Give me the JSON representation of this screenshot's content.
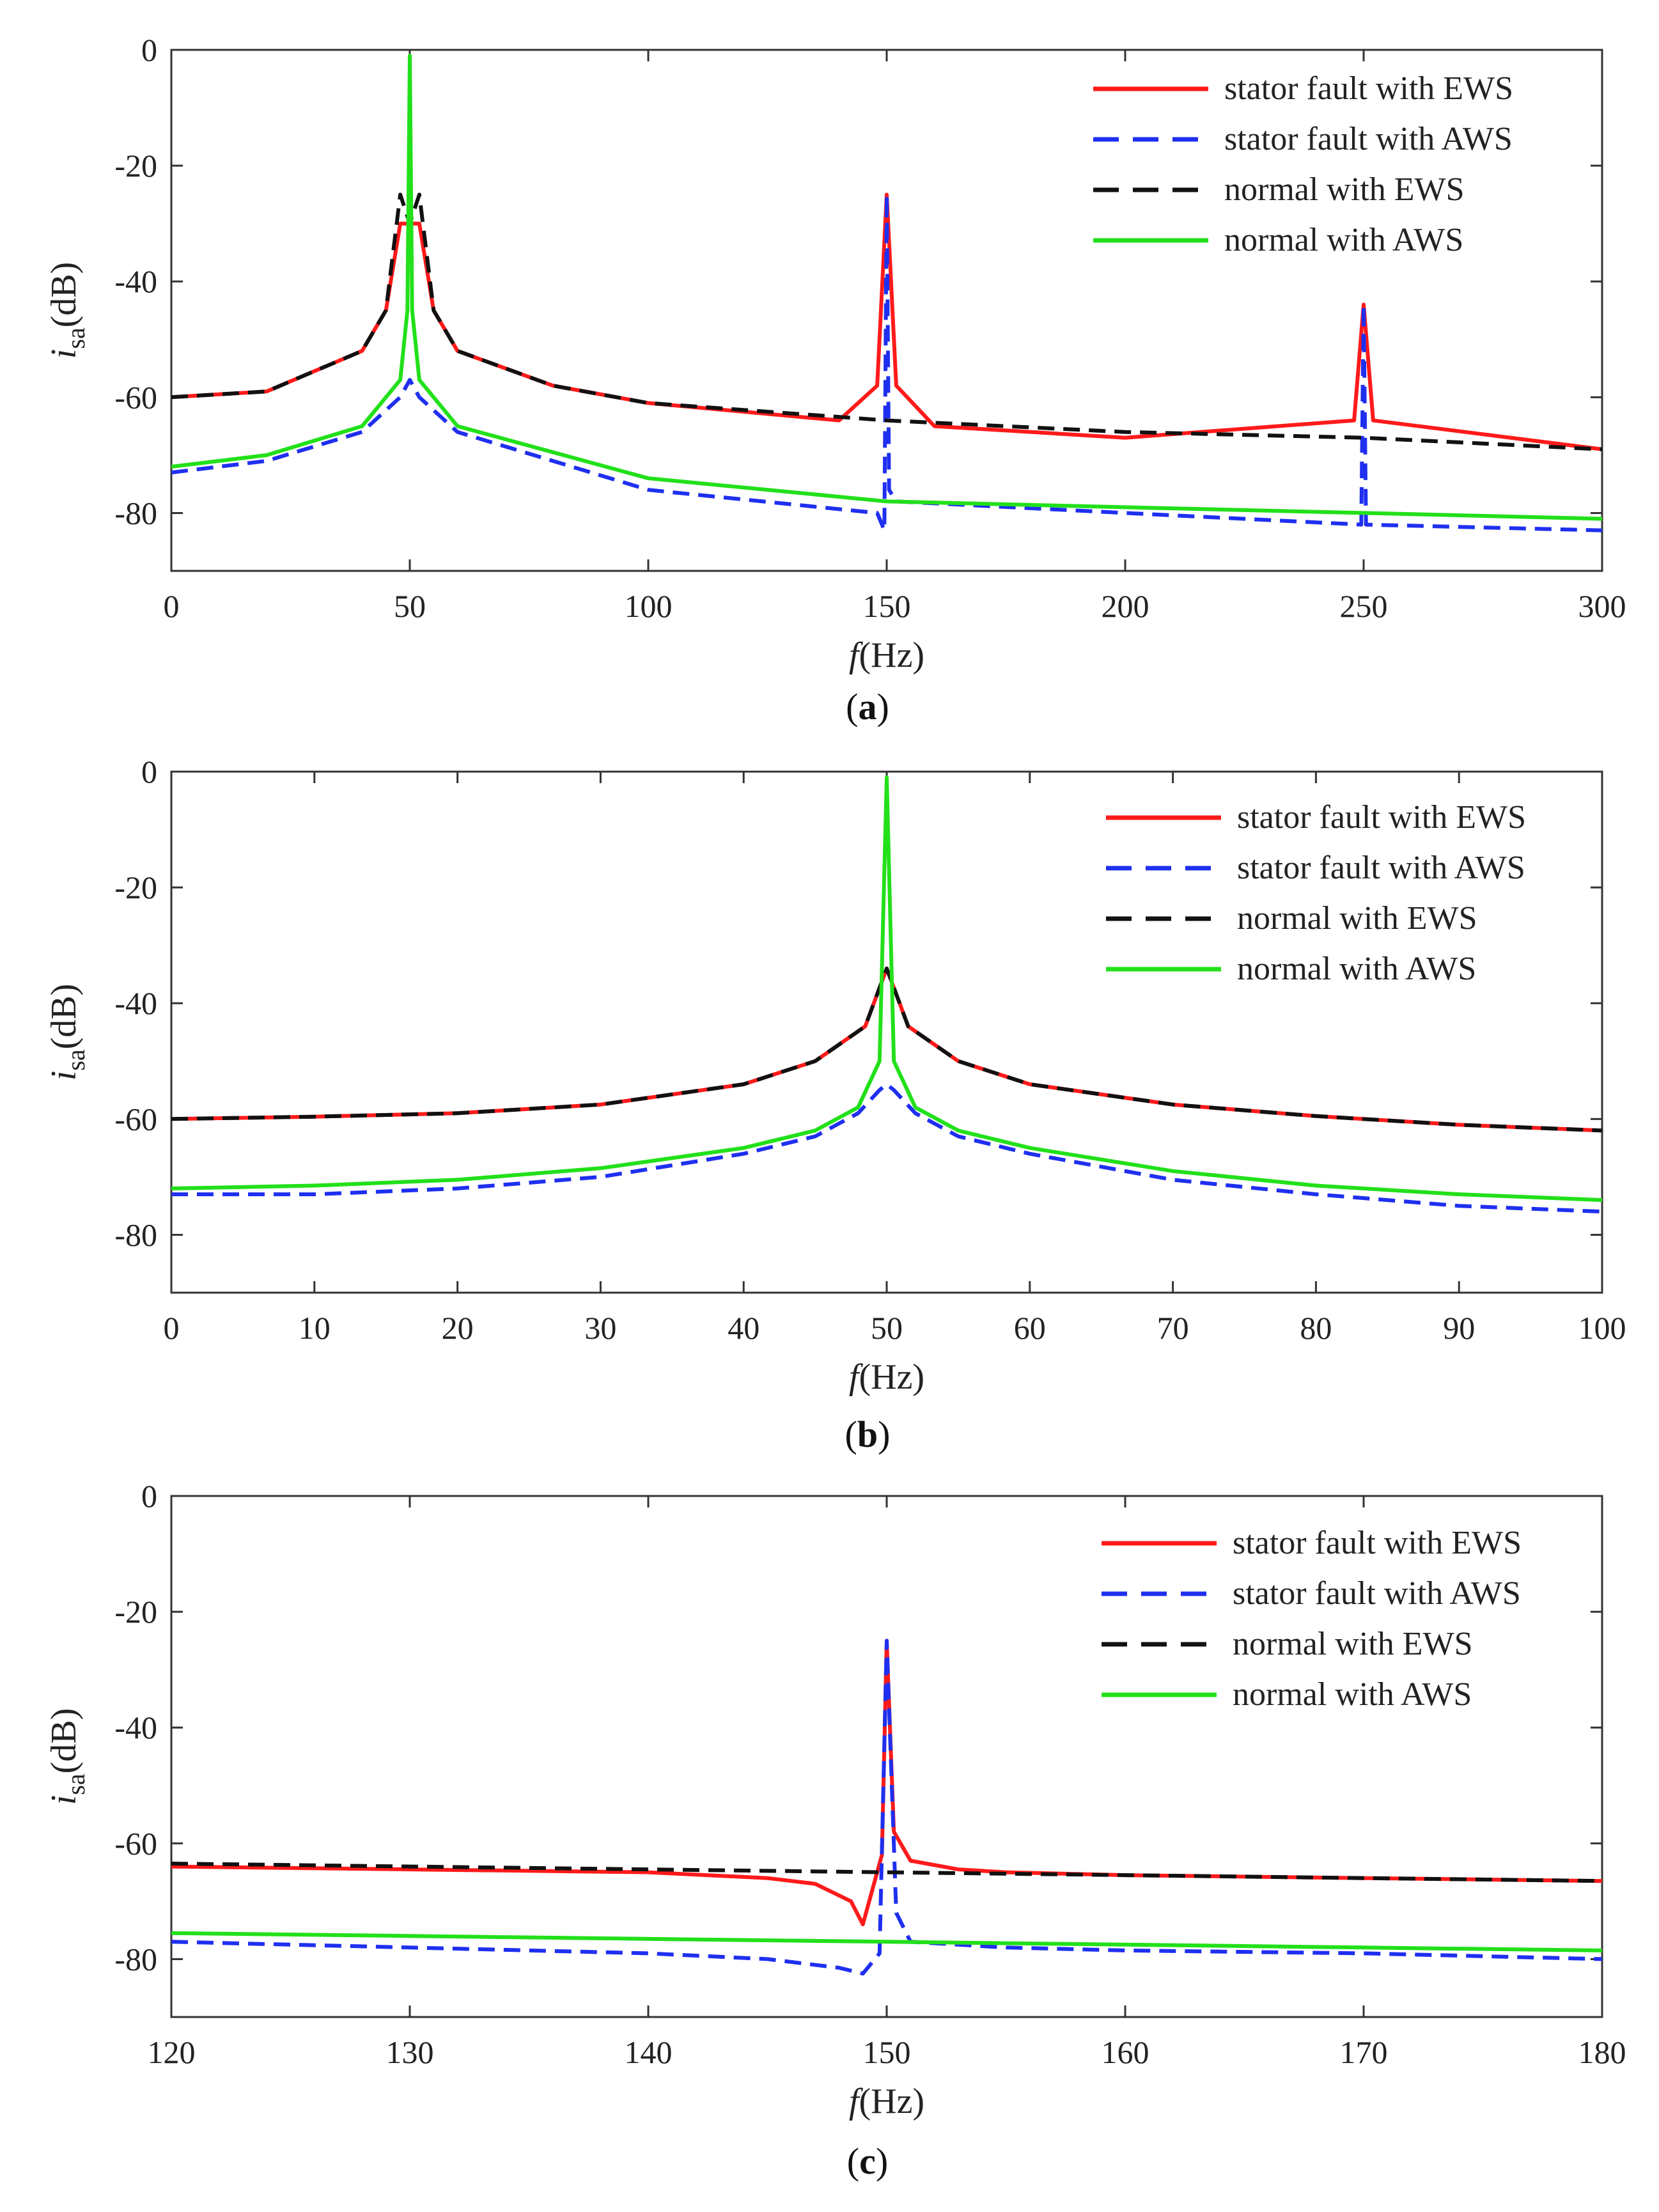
{
  "colors": {
    "stator_fault_ews": "#ff1a1a",
    "stator_fault_aws": "#1f2ff0",
    "normal_ews": "#111111",
    "normal_aws": "#22e01a"
  },
  "legend": [
    {
      "label": "stator fault with EWS",
      "style": "solid",
      "color": "#ff1a1a"
    },
    {
      "label": "stator fault with AWS",
      "style": "dashed",
      "color": "#1f2ff0"
    },
    {
      "label": "normal with EWS",
      "style": "dashed",
      "color": "#111111"
    },
    {
      "label": "normal with AWS",
      "style": "solid",
      "color": "#22e01a"
    }
  ],
  "chart_data": [
    {
      "type": "line",
      "caption_letter": "a",
      "xlabel_italic": "f",
      "xlabel_rest": "(Hz)",
      "ylabel_i": "i",
      "ylabel_sub": "sa",
      "ylabel_rest": "(dB)",
      "xlim": [
        0,
        300
      ],
      "ylim": [
        -90,
        0
      ],
      "xticks": [
        "0",
        "50",
        "100",
        "150",
        "200",
        "250",
        "300"
      ],
      "xtick_values": [
        0,
        50,
        100,
        150,
        200,
        250,
        300
      ],
      "yticks": [
        "0",
        "-20",
        "-40",
        "-60",
        "-80"
      ],
      "ytick_values": [
        0,
        -20,
        -40,
        -60,
        -80
      ],
      "series": [
        {
          "name": "stator fault with EWS",
          "x": [
            0,
            20,
            40,
            45,
            48,
            50,
            52,
            55,
            60,
            80,
            100,
            140,
            148,
            150,
            152,
            160,
            200,
            248,
            250,
            252,
            300
          ],
          "y": [
            -60,
            -59,
            -52,
            -45,
            -30,
            -30,
            -30,
            -45,
            -52,
            -58,
            -61,
            -64,
            -58,
            -25,
            -58,
            -65,
            -67,
            -64,
            -44,
            -64,
            -69
          ]
        },
        {
          "name": "stator fault with AWS",
          "x": [
            0,
            20,
            40,
            48,
            50,
            52,
            60,
            100,
            148,
            149.5,
            150,
            150.5,
            152,
            200,
            249.5,
            250,
            250.5,
            300
          ],
          "y": [
            -73,
            -71,
            -66,
            -60,
            -57,
            -60,
            -66,
            -76,
            -80,
            -83,
            -25,
            -76,
            -78,
            -80,
            -82,
            -44,
            -82,
            -83
          ]
        },
        {
          "name": "normal with EWS",
          "x": [
            0,
            20,
            40,
            45,
            48,
            50,
            52,
            55,
            60,
            80,
            100,
            150,
            200,
            250,
            300
          ],
          "y": [
            -60,
            -59,
            -52,
            -45,
            -25,
            -30,
            -25,
            -45,
            -52,
            -58,
            -61,
            -64,
            -66,
            -67,
            -69
          ]
        },
        {
          "name": "normal with AWS",
          "x": [
            0,
            20,
            40,
            48,
            49.5,
            50,
            50.5,
            52,
            60,
            100,
            150,
            200,
            250,
            300
          ],
          "y": [
            -72,
            -70,
            -65,
            -57,
            -45,
            -1,
            -45,
            -57,
            -65,
            -74,
            -78,
            -79,
            -80,
            -81
          ]
        }
      ]
    },
    {
      "type": "line",
      "caption_letter": "b",
      "xlabel_italic": "f",
      "xlabel_rest": "(Hz)",
      "ylabel_i": "i",
      "ylabel_sub": "sa",
      "ylabel_rest": "(dB)",
      "xlim": [
        0,
        100
      ],
      "ylim": [
        -90,
        0
      ],
      "xticks": [
        "0",
        "10",
        "20",
        "30",
        "40",
        "50",
        "60",
        "70",
        "80",
        "90",
        "100"
      ],
      "xtick_values": [
        0,
        10,
        20,
        30,
        40,
        50,
        60,
        70,
        80,
        90,
        100
      ],
      "yticks": [
        "0",
        "-20",
        "-40",
        "-60",
        "-80"
      ],
      "ytick_values": [
        0,
        -20,
        -40,
        -60,
        -80
      ],
      "series": [
        {
          "name": "stator fault with EWS",
          "x": [
            0,
            10,
            20,
            30,
            40,
            45,
            48.5,
            50,
            51.5,
            55,
            60,
            70,
            80,
            90,
            100
          ],
          "y": [
            -60,
            -59.6,
            -59,
            -57.5,
            -54,
            -50,
            -44,
            -34,
            -44,
            -50,
            -54,
            -57.5,
            -59.5,
            -61,
            -62
          ]
        },
        {
          "name": "stator fault with AWS",
          "x": [
            0,
            10,
            20,
            30,
            40,
            45,
            48,
            49.5,
            50,
            50.5,
            52,
            55,
            60,
            70,
            80,
            90,
            100
          ],
          "y": [
            -73,
            -73,
            -72,
            -70,
            -66,
            -63,
            -59,
            -55,
            -54,
            -55,
            -59,
            -63,
            -66,
            -70.5,
            -73,
            -75,
            -76
          ]
        },
        {
          "name": "normal with EWS",
          "x": [
            0,
            10,
            20,
            30,
            40,
            45,
            48.5,
            50,
            51.5,
            55,
            60,
            70,
            80,
            90,
            100
          ],
          "y": [
            -60,
            -59.6,
            -59,
            -57.5,
            -54,
            -50,
            -44,
            -34,
            -44,
            -50,
            -54,
            -57.5,
            -59.5,
            -61,
            -62
          ]
        },
        {
          "name": "normal with AWS",
          "x": [
            0,
            10,
            20,
            30,
            40,
            45,
            48,
            49.5,
            50,
            50.5,
            52,
            55,
            60,
            70,
            80,
            90,
            100
          ],
          "y": [
            -72,
            -71.5,
            -70.5,
            -68.5,
            -65,
            -62,
            -58,
            -50,
            -1,
            -50,
            -58,
            -62,
            -65,
            -69,
            -71.5,
            -73,
            -74
          ]
        }
      ]
    },
    {
      "type": "line",
      "caption_letter": "c",
      "xlabel_italic": "f",
      "xlabel_rest": "(Hz)",
      "ylabel_i": "i",
      "ylabel_sub": "sa",
      "ylabel_rest": "(dB)",
      "xlim": [
        120,
        180
      ],
      "ylim": [
        -90,
        0
      ],
      "xticks": [
        "120",
        "130",
        "140",
        "150",
        "160",
        "170",
        "180"
      ],
      "xtick_values": [
        120,
        130,
        140,
        150,
        160,
        170,
        180
      ],
      "yticks": [
        "0",
        "-20",
        "-40",
        "-60",
        "-80"
      ],
      "ytick_values": [
        0,
        -20,
        -40,
        -60,
        -80
      ],
      "series": [
        {
          "name": "stator fault with EWS",
          "x": [
            120,
            130,
            140,
            145,
            147,
            148.5,
            149,
            149.8,
            150,
            150.3,
            151,
            153,
            155,
            160,
            170,
            180
          ],
          "y": [
            -64,
            -64.5,
            -65,
            -66,
            -67,
            -70,
            -74,
            -62,
            -25,
            -58,
            -63,
            -64.5,
            -65,
            -65.5,
            -66,
            -66.5
          ]
        },
        {
          "name": "stator fault with AWS",
          "x": [
            120,
            130,
            140,
            145,
            148,
            149,
            149.7,
            150,
            150.4,
            151,
            155,
            160,
            170,
            180
          ],
          "y": [
            -77,
            -78,
            -79,
            -80,
            -81.5,
            -82.5,
            -79,
            -25,
            -72,
            -77,
            -78,
            -78.5,
            -79,
            -80
          ]
        },
        {
          "name": "normal with EWS",
          "x": [
            120,
            130,
            140,
            150,
            160,
            170,
            180
          ],
          "y": [
            -63.5,
            -64,
            -64.5,
            -65,
            -65.5,
            -66,
            -66.5
          ]
        },
        {
          "name": "normal with AWS",
          "x": [
            120,
            130,
            140,
            150,
            160,
            170,
            180
          ],
          "y": [
            -75.5,
            -76,
            -76.5,
            -77,
            -77.5,
            -78,
            -78.5
          ]
        }
      ]
    }
  ]
}
